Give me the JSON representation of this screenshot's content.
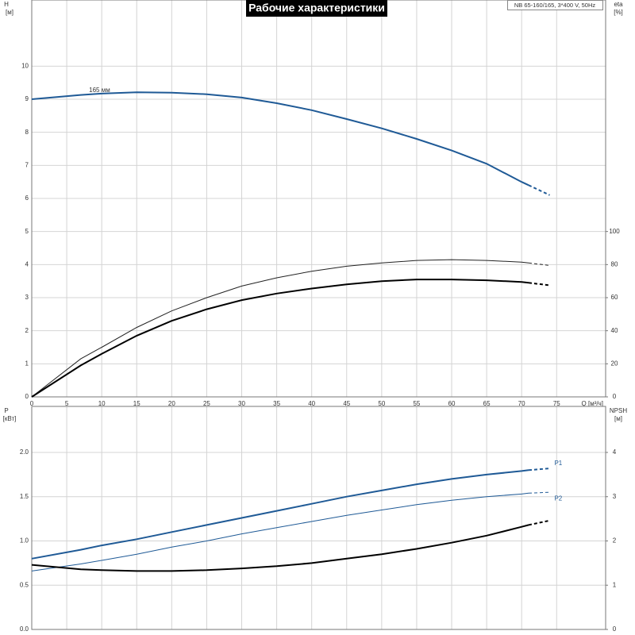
{
  "header": {
    "title": "Рабочие характеристики",
    "info": "NB 65-160/165, 3*400 V, 50Hz"
  },
  "chart_data": [
    {
      "type": "line",
      "x_label": "Q [м³/ч]",
      "y_label": "H",
      "y_unit": "[м]",
      "y2_label": "eta",
      "y2_unit": "[%]",
      "xlim": [
        0,
        82
      ],
      "xticks": [
        0,
        5,
        10,
        15,
        20,
        25,
        30,
        35,
        40,
        45,
        50,
        55,
        60,
        65,
        70,
        75
      ],
      "show_xtick_labels": true,
      "ylim": [
        0,
        12
      ],
      "yticks": [
        0,
        1,
        2,
        3,
        4,
        5,
        6,
        7,
        8,
        9,
        10
      ],
      "y2lim": [
        0,
        240
      ],
      "y2ticks": [
        0,
        20,
        40,
        60,
        80,
        100
      ],
      "grid": true,
      "dashed_from_x": 71,
      "series_label_side": "start",
      "x": [
        0,
        7,
        10,
        15,
        20,
        25,
        30,
        35,
        40,
        45,
        50,
        55,
        60,
        65,
        70,
        71,
        74
      ],
      "series": [
        {
          "name": "165 мм",
          "color": "#1f5a96",
          "line_width": 2,
          "values": [
            9.0,
            9.13,
            9.17,
            9.21,
            9.2,
            9.15,
            9.05,
            8.88,
            8.67,
            8.4,
            8.12,
            7.8,
            7.45,
            7.05,
            6.5,
            6.4,
            6.1
          ]
        },
        {
          "color": "#222222",
          "line_width": 1,
          "axis": "y2",
          "values": [
            0,
            23,
            30,
            42,
            52,
            60,
            67,
            72,
            76,
            79,
            81,
            82.5,
            83,
            82.5,
            81.5,
            81,
            79.5
          ]
        },
        {
          "color": "#000000",
          "line_width": 2,
          "axis": "y2",
          "values": [
            0,
            19,
            26,
            37,
            46,
            53,
            58.5,
            62.5,
            65.5,
            68,
            70,
            71,
            71,
            70.5,
            69.5,
            69,
            67.5
          ]
        }
      ]
    },
    {
      "type": "line",
      "y_label": "P",
      "y_unit": "[кВт]",
      "y2_label": "NPSH",
      "y2_unit": "[м]",
      "xlim": [
        0,
        82
      ],
      "xticks": [
        0,
        5,
        10,
        15,
        20,
        25,
        30,
        35,
        40,
        45,
        50,
        55,
        60,
        65,
        70,
        75
      ],
      "show_xtick_labels": false,
      "ylim": [
        0,
        2.52
      ],
      "yticks": [
        {
          "value": 0,
          "label": "0.0"
        },
        0.5,
        {
          "value": 1,
          "label": "1.0"
        },
        1.5,
        {
          "value": 2,
          "label": "2.0"
        }
      ],
      "y2lim": [
        0,
        5.04
      ],
      "y2ticks": [
        0,
        1,
        2,
        3,
        4
      ],
      "grid": true,
      "dashed_from_x": 71,
      "series_label_side": "end",
      "x": [
        0,
        7,
        10,
        15,
        20,
        25,
        30,
        35,
        40,
        45,
        50,
        55,
        60,
        65,
        70,
        71,
        74
      ],
      "series": [
        {
          "name": "P1",
          "color": "#1f5a96",
          "line_width": 2,
          "values": [
            0.8,
            0.9,
            0.95,
            1.02,
            1.1,
            1.18,
            1.26,
            1.34,
            1.42,
            1.5,
            1.57,
            1.64,
            1.7,
            1.75,
            1.79,
            1.8,
            1.82
          ]
        },
        {
          "name": "P2",
          "color": "#1f5a96",
          "line_width": 1,
          "values": [
            0.66,
            0.74,
            0.78,
            0.85,
            0.93,
            1.0,
            1.08,
            1.15,
            1.22,
            1.29,
            1.35,
            1.41,
            1.46,
            1.5,
            1.53,
            1.54,
            1.55
          ]
        },
        {
          "color": "#000000",
          "line_width": 2,
          "axis": "y2",
          "values": [
            1.46,
            1.36,
            1.34,
            1.32,
            1.32,
            1.34,
            1.38,
            1.43,
            1.5,
            1.6,
            1.7,
            1.82,
            1.96,
            2.12,
            2.32,
            2.36,
            2.46
          ]
        }
      ]
    }
  ]
}
